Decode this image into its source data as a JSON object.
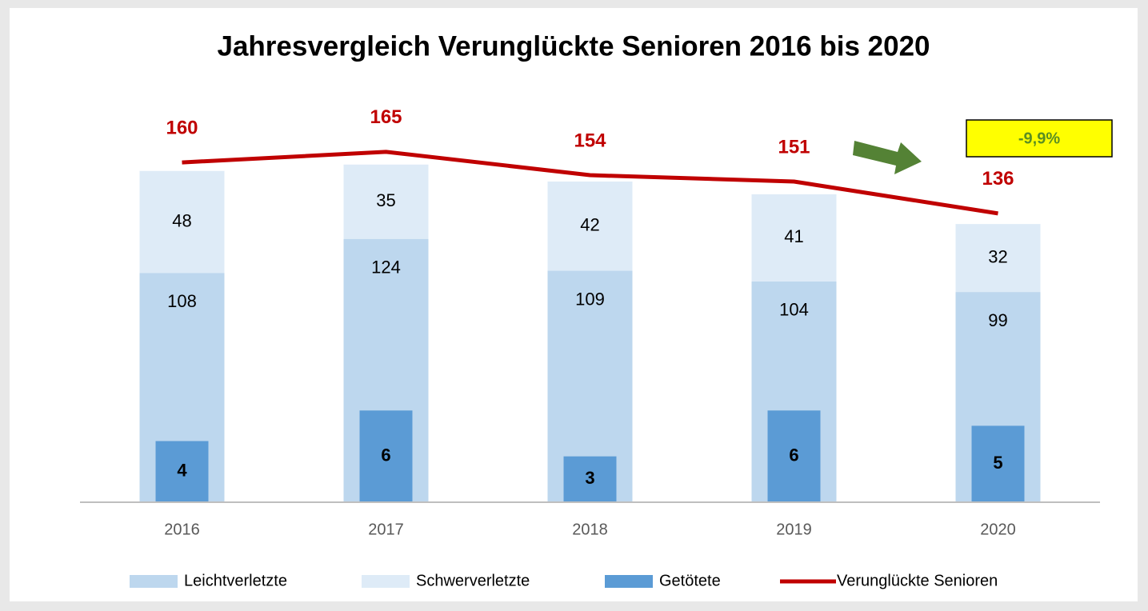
{
  "chart_data": {
    "type": "bar",
    "title": "Jahresvergleich Verunglückte Senioren 2016 bis 2020",
    "categories": [
      "2016",
      "2017",
      "2018",
      "2019",
      "2020"
    ],
    "ylim": [
      0,
      180
    ],
    "y2lim": [
      0,
      25
    ],
    "series": [
      {
        "name": "Leichtverletzte",
        "type": "bar",
        "stack": true,
        "color": "#bdd7ee",
        "values": [
          108,
          124,
          109,
          104,
          99
        ]
      },
      {
        "name": "Schwerverletzte",
        "type": "bar",
        "stack": true,
        "color": "#deebf7",
        "values": [
          48,
          35,
          42,
          41,
          32
        ]
      },
      {
        "name": "Getötete",
        "type": "bar",
        "axis": "y2",
        "color": "#5b9bd5",
        "values": [
          4,
          6,
          3,
          6,
          5
        ]
      },
      {
        "name": "Verunglückte Senioren",
        "type": "line",
        "color": "#c00000",
        "values": [
          160,
          165,
          154,
          151,
          136
        ]
      }
    ],
    "annotations": [
      {
        "text": "-9,9%"
      }
    ],
    "legend": "bottom"
  }
}
